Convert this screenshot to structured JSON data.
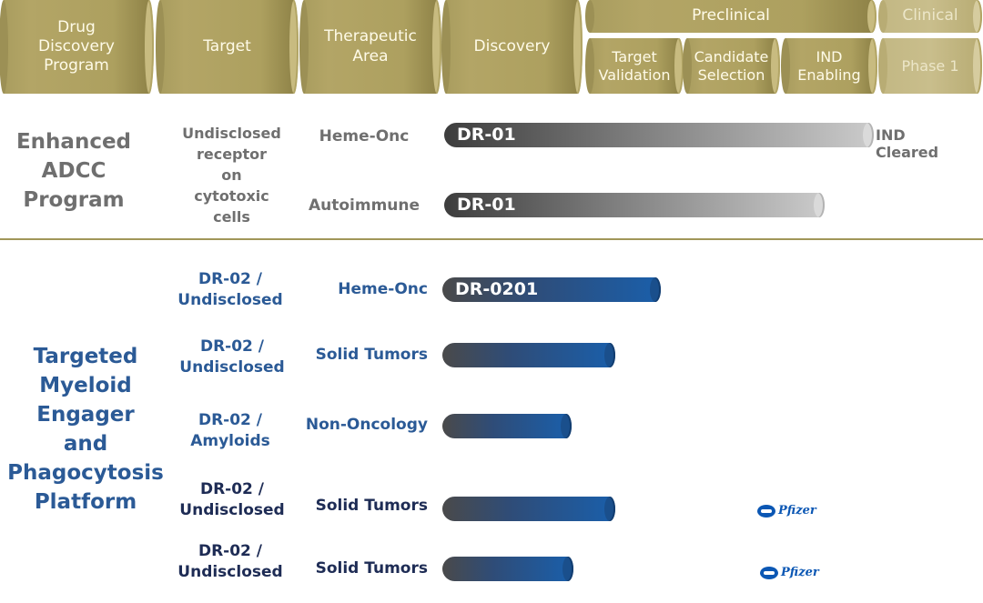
{
  "header": {
    "drug_program": "Drug\nDiscovery\nProgram",
    "target": "Target",
    "therapeutic_area": "Therapeutic\nArea",
    "discovery": "Discovery",
    "preclinical": "Preclinical",
    "clinical": "Clinical",
    "target_validation": "Target\nValidation",
    "candidate_selection": "Candidate\nSelection",
    "ind_enabling": "IND\nEnabling",
    "phase1": "Phase 1"
  },
  "program1": {
    "name": "Enhanced\nADCC\nProgram",
    "target": "Undisclosed\nreceptor\non\ncytotoxic\ncells",
    "rows": [
      {
        "area": "Heme-Onc",
        "asset": "DR-01",
        "status": "IND Cleared",
        "progress": "IND Enabling (end)"
      },
      {
        "area": "Autoimmune",
        "asset": "DR-01",
        "progress": "IND Enabling"
      }
    ]
  },
  "program2": {
    "name": "Targeted\nMyeloid\nEngager\nand\nPhagocytosis\nPlatform",
    "rows": [
      {
        "target": "DR-02 /\nUndisclosed",
        "area": "Heme-Onc",
        "asset": "DR-0201",
        "progress": "Target Validation"
      },
      {
        "target": "DR-02 /\nUndisclosed",
        "area": "Solid Tumors",
        "progress": "Target Validation"
      },
      {
        "target": "DR-02 /\nAmyloids",
        "area": "Non-Oncology",
        "progress": "Discovery"
      },
      {
        "target": "DR-02 /\nUndisclosed",
        "area": "Solid Tumors",
        "partner": "Pfizer",
        "progress": "Target Validation"
      },
      {
        "target": "DR-02 /\nUndisclosed",
        "area": "Solid Tumors",
        "partner": "Pfizer",
        "progress": "Discovery"
      }
    ]
  }
}
